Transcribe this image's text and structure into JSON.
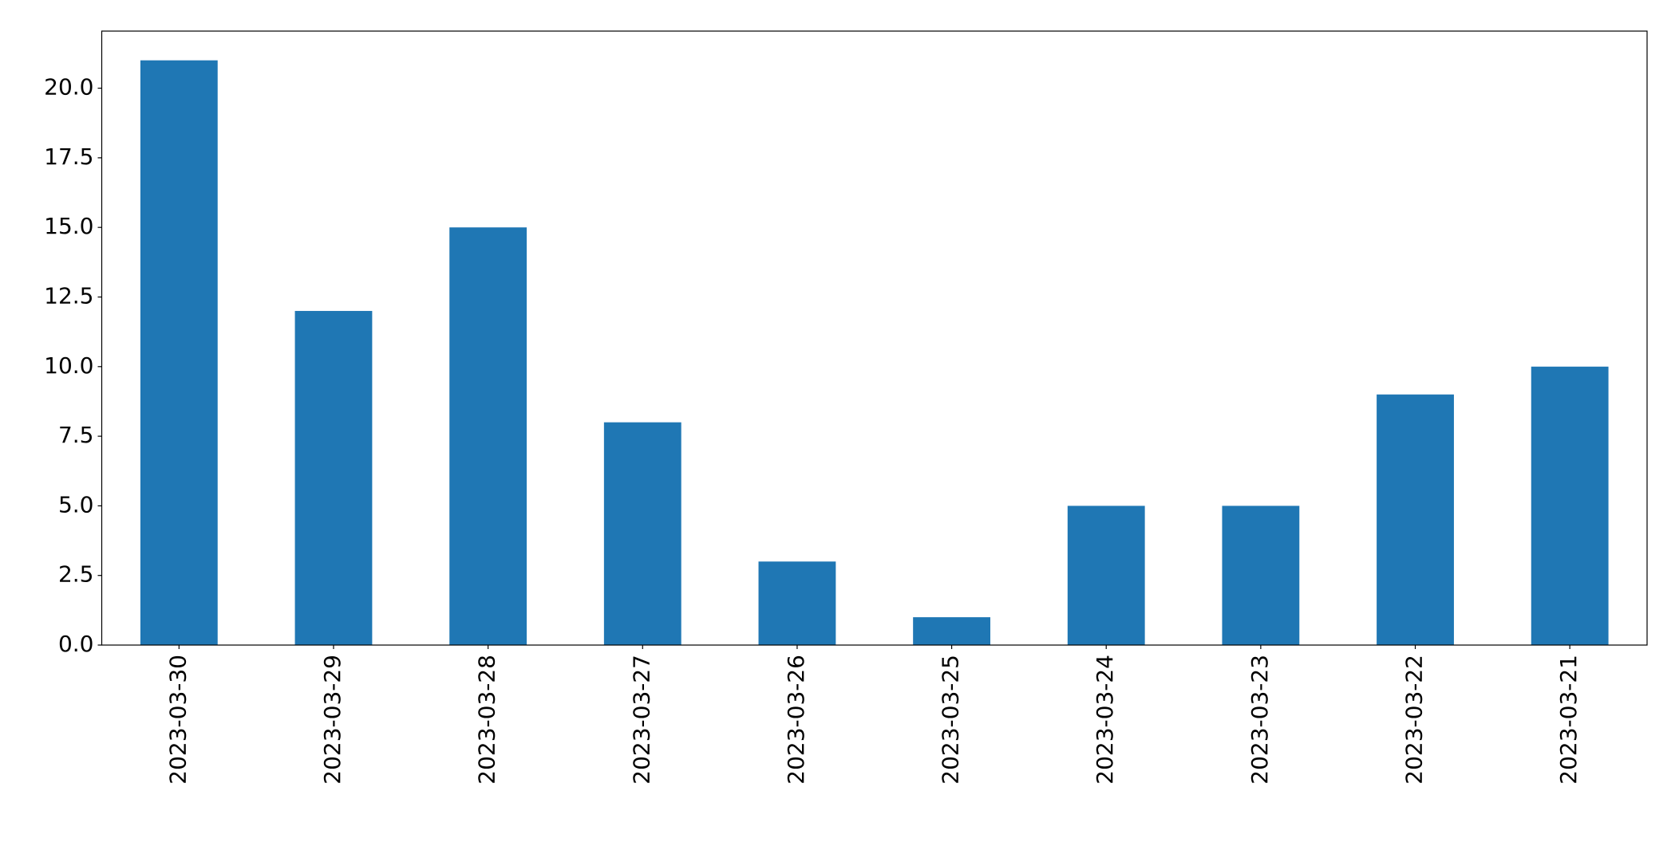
{
  "chart_data": {
    "type": "bar",
    "categories": [
      "2023-03-30",
      "2023-03-29",
      "2023-03-28",
      "2023-03-27",
      "2023-03-26",
      "2023-03-25",
      "2023-03-24",
      "2023-03-23",
      "2023-03-22",
      "2023-03-21"
    ],
    "values": [
      21,
      12,
      15,
      8,
      3,
      1,
      5,
      5,
      9,
      10
    ],
    "color": "#1f77b4",
    "ylim": [
      0,
      22.05
    ],
    "yticks": [
      {
        "value": 0,
        "label": "0.0"
      },
      2.5,
      {
        "value": 5,
        "label": "5.0"
      },
      7.5,
      {
        "value": 10,
        "label": "10.0"
      },
      12.5,
      {
        "value": 15,
        "label": "15.0"
      },
      17.5,
      {
        "value": 20,
        "label": "20.0"
      }
    ],
    "grid": false
  }
}
